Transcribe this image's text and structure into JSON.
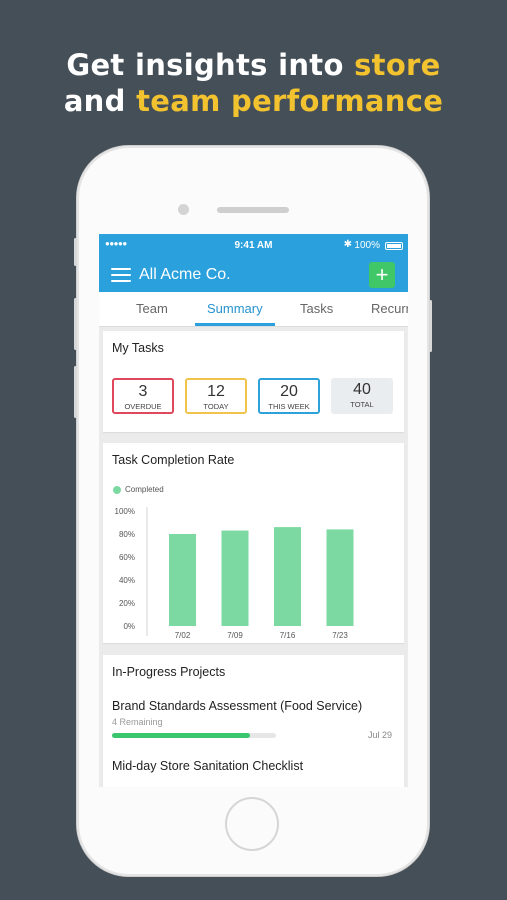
{
  "headline": {
    "line1_prefix": "Get insights into",
    "line1_highlight": "store",
    "line2_prefix": "and",
    "line2_highlight": "team performance"
  },
  "status_bar": {
    "signal": "●●●●● ",
    "time": "9:41 AM",
    "bluetooth": "✱",
    "battery": "100%"
  },
  "app_bar": {
    "title": "All Acme Co.",
    "add_label": "+"
  },
  "tabs": [
    "Team",
    "Summary",
    "Tasks",
    "Recurring"
  ],
  "active_tab": "Summary",
  "my_tasks": {
    "title": "My Tasks",
    "stats": [
      {
        "value": "3",
        "label": "OVERDUE",
        "color": "#e0485c"
      },
      {
        "value": "12",
        "label": "TODAY",
        "color": "#f0c44c"
      },
      {
        "value": "20",
        "label": "THIS WEEK",
        "color": "#2ea2d8"
      },
      {
        "value": "40",
        "label": "TOTAL",
        "color": "#e9edf0"
      }
    ]
  },
  "completion_card": {
    "title": "Task Completion Rate"
  },
  "chart_data": {
    "type": "bar",
    "title": "Task Completion Rate",
    "categories": [
      "7/02",
      "7/09",
      "7/16",
      "7/23"
    ],
    "series": [
      {
        "name": "Completed",
        "values": [
          80,
          83,
          86,
          84
        ],
        "color": "#7dd9a2"
      }
    ],
    "ylim": [
      0,
      100
    ],
    "yticks": [
      "0%",
      "20%",
      "40%",
      "60%",
      "80%",
      "100%"
    ],
    "ytick_values": [
      0,
      20,
      40,
      60,
      80,
      100
    ],
    "grid": false,
    "legend": "top-left"
  },
  "projects": {
    "title": "In-Progress Projects",
    "items": [
      {
        "name": "Brand Standards Assessment (Food Service)",
        "remaining": "4 Remaining",
        "progress": 0.84,
        "due": "Jul 29"
      },
      {
        "name": "Mid-day Store Sanitation Checklist",
        "remaining": "",
        "progress": 0,
        "due": ""
      }
    ]
  },
  "colors": {
    "background": "#454f58",
    "highlight": "#f2c22f",
    "app_blue": "#2aa0dc",
    "add_green": "#3fc768",
    "progress_green": "#39c76e"
  }
}
